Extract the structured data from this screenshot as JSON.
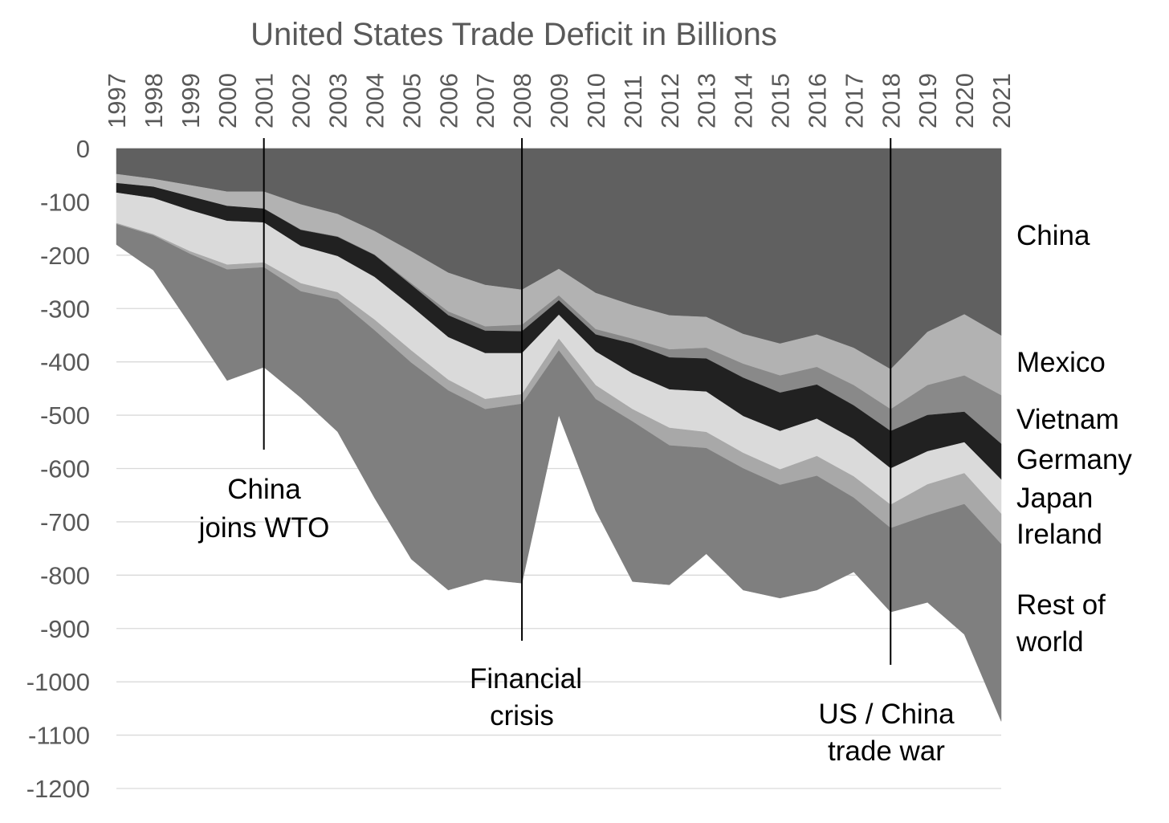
{
  "chart_data": {
    "type": "area",
    "stacked": true,
    "title": "United States Trade Deficit in Billions",
    "xlabel": "",
    "ylabel": "",
    "ylim": [
      -1200,
      0
    ],
    "yticks": [
      0,
      -100,
      -200,
      -300,
      -400,
      -500,
      -600,
      -700,
      -800,
      -900,
      -1000,
      -1100,
      -1200
    ],
    "grid": true,
    "legend": "right (labels beside series)",
    "categories": [
      "1997",
      "1998",
      "1999",
      "2000",
      "2001",
      "2002",
      "2003",
      "2004",
      "2005",
      "2006",
      "2007",
      "2008",
      "2009",
      "2010",
      "2011",
      "2012",
      "2013",
      "2014",
      "2015",
      "2016",
      "2017",
      "2018",
      "2019",
      "2020",
      "2021"
    ],
    "series": [
      {
        "name": "China",
        "color": "#606060",
        "values": [
          -48,
          -57,
          -69,
          -81,
          -81,
          -105,
          -123,
          -155,
          -193,
          -233,
          -256,
          -265,
          -226,
          -271,
          -294,
          -313,
          -316,
          -348,
          -366,
          -349,
          -374,
          -414,
          -344,
          -311,
          -351
        ]
      },
      {
        "name": "Mexico",
        "color": "#b2b2b2",
        "values": [
          -17,
          -15,
          -21,
          -27,
          -32,
          -47,
          -42,
          -44,
          -60,
          -73,
          -78,
          -66,
          -50,
          -68,
          -63,
          -64,
          -58,
          -56,
          -60,
          -61,
          -70,
          -75,
          -100,
          -115,
          -112
        ]
      },
      {
        "name": "Vietnam",
        "color": "#898989",
        "values": [
          0,
          0,
          0,
          0,
          0,
          -1,
          -1,
          -1,
          -3,
          -7,
          -8,
          -12,
          -9,
          -10,
          -9,
          -15,
          -20,
          -26,
          -32,
          -33,
          -38,
          -41,
          -56,
          -68,
          -91
        ]
      },
      {
        "name": "Germany",
        "color": "#212121",
        "values": [
          -18,
          -21,
          -26,
          -28,
          -26,
          -30,
          -36,
          -41,
          -40,
          -41,
          -42,
          -41,
          -27,
          -32,
          -56,
          -60,
          -62,
          -72,
          -72,
          -64,
          -63,
          -70,
          -68,
          -57,
          -67
        ]
      },
      {
        "name": "Japan",
        "color": "#dadada",
        "values": [
          -57,
          -68,
          -77,
          -82,
          -75,
          -70,
          -68,
          -80,
          -83,
          -80,
          -86,
          -77,
          -45,
          -63,
          -67,
          -72,
          -76,
          -69,
          -72,
          -70,
          -70,
          -68,
          -62,
          -58,
          -64
        ]
      },
      {
        "name": "Ireland",
        "color": "#a8a8a8",
        "values": [
          -2,
          -2,
          -5,
          -9,
          -9,
          -15,
          -13,
          -20,
          -23,
          -20,
          -19,
          -18,
          -22,
          -26,
          -23,
          -33,
          -30,
          -29,
          -29,
          -37,
          -40,
          -44,
          -58,
          -58,
          -57
        ]
      },
      {
        "name": "Rest of world",
        "color": "#7f7f7f",
        "values": [
          -38,
          -65,
          -132,
          -208,
          -187,
          -199,
          -248,
          -314,
          -368,
          -374,
          -319,
          -336,
          -121,
          -209,
          -300,
          -261,
          -198,
          -228,
          -212,
          -214,
          -139,
          -157,
          -163,
          -244,
          -332
        ]
      }
    ],
    "legend_labels": {
      "china": "China",
      "mexico": "Mexico",
      "vietnam": "Vietnam",
      "germany": "Germany",
      "japan": "Japan",
      "ireland": "Ireland",
      "rest_line1": "Rest of",
      "rest_line2": "world"
    },
    "annotations": [
      {
        "year": "2001",
        "lines": [
          "China",
          "joins WTO"
        ]
      },
      {
        "year": "2008",
        "lines": [
          "Financial",
          "crisis"
        ]
      },
      {
        "year": "2018",
        "lines": [
          "US / China",
          "trade war"
        ]
      }
    ]
  }
}
